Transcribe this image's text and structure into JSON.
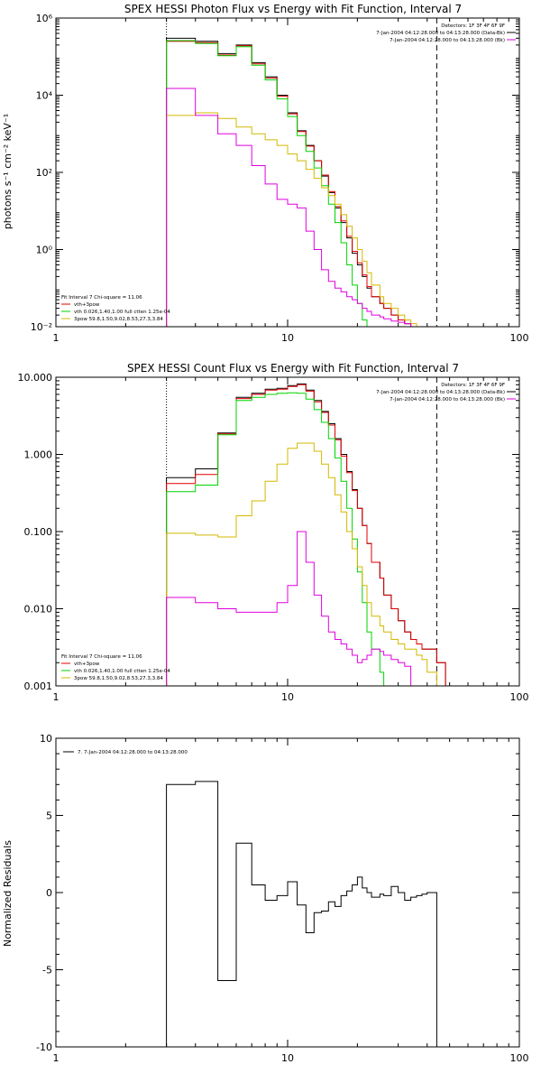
{
  "colors": {
    "black": "#000000",
    "red": "#e00000",
    "green": "#00d400",
    "yellow": "#d4b800",
    "magenta": "#e000e0"
  },
  "chart_data": [
    {
      "type": "line",
      "step": true,
      "title": "SPEX HESSI Photon Flux vs Energy with Fit Function, Interval 7",
      "xlabel": "",
      "ylabel": "photons s⁻¹ cm⁻² keV⁻¹",
      "xscale": "log",
      "yscale": "log",
      "xlim": [
        1,
        100
      ],
      "ylim": [
        0.01,
        1000000
      ],
      "xticks": [
        1,
        10,
        100
      ],
      "xtick_labels": [
        "1",
        "10",
        "100"
      ],
      "yticks": [
        0.01,
        1,
        100,
        10000,
        1000000
      ],
      "ytick_labels": [
        "10⁻²",
        "10⁰",
        "10²",
        "10⁴",
        "10⁶"
      ],
      "vlines": [
        {
          "x": 3,
          "style": "dotted"
        },
        {
          "x": 44,
          "style": "dashed"
        }
      ],
      "bin_edges": [
        3,
        4,
        5,
        6,
        7,
        8,
        9,
        10,
        11,
        12,
        13,
        14,
        15,
        16,
        17,
        18,
        19,
        20,
        21,
        22,
        23,
        25,
        26,
        28,
        30,
        32,
        34,
        36,
        38,
        40,
        44,
        48,
        52
      ],
      "series": [
        {
          "color": "black",
          "values": [
            300000,
            250000,
            120000,
            200000,
            70000,
            30000,
            10000,
            3500,
            1200,
            500,
            200,
            80,
            30,
            12,
            5,
            2,
            0.8,
            0.4,
            0.2,
            0.1,
            0.06,
            0.04,
            0.03,
            0.02,
            0.015,
            0.012,
            0.01,
            null,
            null,
            null,
            null,
            null
          ]
        },
        {
          "color": "red",
          "values": [
            250000,
            230000,
            110000,
            190000,
            65000,
            28000,
            9500,
            3300,
            1150,
            480,
            200,
            85,
            32,
            13,
            5.5,
            2.2,
            0.9,
            0.45,
            0.22,
            0.11,
            0.06,
            0.04,
            0.03,
            0.02,
            0.015,
            0.012,
            0.01,
            null,
            null,
            null,
            null,
            null
          ]
        },
        {
          "color": "green",
          "values": [
            260000,
            220000,
            105000,
            180000,
            60000,
            25000,
            8000,
            2800,
            900,
            350,
            130,
            45,
            15,
            5,
            1.5,
            0.4,
            0.12,
            0.04,
            0.015,
            null,
            null,
            null,
            null,
            null,
            null,
            null,
            null,
            null,
            null,
            null,
            null,
            null
          ]
        },
        {
          "color": "yellow",
          "values": [
            3000,
            3500,
            2500,
            1500,
            1000,
            700,
            500,
            300,
            200,
            120,
            70,
            40,
            25,
            15,
            8,
            4,
            2,
            1,
            0.5,
            0.25,
            0.12,
            0.06,
            0.04,
            0.03,
            0.02,
            0.015,
            0.012,
            0.01,
            null,
            null,
            null,
            null
          ]
        },
        {
          "color": "magenta",
          "values": [
            15000,
            3000,
            1000,
            500,
            150,
            50,
            20,
            15,
            12,
            3,
            1,
            0.3,
            0.15,
            0.1,
            0.08,
            0.06,
            0.05,
            0.04,
            0.03,
            0.025,
            0.02,
            0.018,
            0.016,
            0.014,
            0.013,
            0.012,
            null,
            null,
            null,
            null,
            null,
            null
          ]
        }
      ],
      "legend": {
        "position": "top-right",
        "lines": [
          "Detectors: 1F 3F 4F 6F 9F",
          "7-Jan-2004 04:12:28.000 to 04:13:28.000 (Data-Bk)",
          "7-Jan-2004 04:12:28.000 to 04:13:28.000 (Bk)"
        ],
        "colors": [
          "",
          "black",
          "magenta"
        ]
      },
      "fit_legend": {
        "position": "bottom-left",
        "lines": [
          "Fit Interval 7   Chi-square = 11.06",
          "vth+3pow",
          "vth 0.026,1.40,1.00  full ctten 1.25e-04",
          "3pow 59.8,1.50,9.02,8.53,27.3,3.84"
        ],
        "colors": [
          "",
          "red",
          "green",
          "yellow"
        ]
      }
    },
    {
      "type": "line",
      "step": true,
      "title": "SPEX HESSI Count Flux vs Energy with Fit Function, Interval 7",
      "xlabel": "",
      "ylabel": "",
      "xscale": "log",
      "yscale": "log",
      "xlim": [
        1,
        100
      ],
      "ylim": [
        0.001,
        10
      ],
      "xticks": [
        1,
        10,
        100
      ],
      "xtick_labels": [
        "1",
        "10",
        "100"
      ],
      "yticks": [
        0.001,
        0.01,
        0.1,
        1,
        10
      ],
      "ytick_labels": [
        "0.001",
        "0.010",
        "0.100",
        "1.000",
        "10.000"
      ],
      "vlines": [
        {
          "x": 3,
          "style": "dotted"
        },
        {
          "x": 44,
          "style": "dashed"
        }
      ],
      "bin_edges": [
        3,
        4,
        5,
        6,
        7,
        8,
        9,
        10,
        11,
        12,
        13,
        14,
        15,
        16,
        17,
        18,
        19,
        20,
        21,
        22,
        23,
        25,
        26,
        28,
        30,
        32,
        34,
        36,
        38,
        40,
        44,
        48,
        52
      ],
      "series": [
        {
          "color": "black",
          "values": [
            0.5,
            0.65,
            1.9,
            5.5,
            6.2,
            7.0,
            7.2,
            7.8,
            8.2,
            6.8,
            5.0,
            3.6,
            2.5,
            1.6,
            1.0,
            0.6,
            0.35,
            0.2,
            0.12,
            0.07,
            0.04,
            0.025,
            0.015,
            0.01,
            0.007,
            0.005,
            0.004,
            0.0035,
            0.003,
            0.003,
            0.002,
            0.001
          ]
        },
        {
          "color": "red",
          "values": [
            0.42,
            0.55,
            1.85,
            5.3,
            6.0,
            6.8,
            7.0,
            7.6,
            8.0,
            6.6,
            4.8,
            3.5,
            2.4,
            1.55,
            0.95,
            0.58,
            0.34,
            0.2,
            0.12,
            0.07,
            0.04,
            0.025,
            0.015,
            0.01,
            0.007,
            0.005,
            0.004,
            0.0035,
            0.003,
            0.003,
            0.002,
            0.001
          ]
        },
        {
          "color": "green",
          "values": [
            0.33,
            0.4,
            1.8,
            5.0,
            5.5,
            6.0,
            6.2,
            6.3,
            6.2,
            5.2,
            3.8,
            2.6,
            1.6,
            0.9,
            0.45,
            0.2,
            0.08,
            0.03,
            0.012,
            0.005,
            0.003,
            0.0015,
            0.001,
            null,
            null,
            null,
            null,
            null,
            null,
            null,
            null,
            null
          ]
        },
        {
          "color": "yellow",
          "values": [
            0.095,
            0.09,
            0.085,
            0.16,
            0.25,
            0.45,
            0.75,
            1.2,
            1.4,
            1.4,
            1.1,
            0.75,
            0.5,
            0.3,
            0.18,
            0.1,
            0.06,
            0.035,
            0.02,
            0.012,
            0.008,
            0.006,
            0.005,
            0.004,
            0.0035,
            0.003,
            0.003,
            0.0025,
            0.0022,
            0.0015,
            0.001,
            0.001
          ]
        },
        {
          "color": "magenta",
          "values": [
            0.014,
            0.012,
            0.01,
            0.009,
            0.009,
            0.009,
            0.012,
            0.02,
            0.1,
            0.04,
            0.015,
            0.008,
            0.005,
            0.004,
            0.0035,
            0.003,
            0.0025,
            0.002,
            0.0022,
            0.0025,
            0.003,
            0.0028,
            0.0025,
            0.0022,
            0.002,
            0.0018,
            null,
            null,
            null,
            null,
            null,
            null
          ]
        }
      ],
      "legend": {
        "position": "top-right",
        "lines": [
          "Detectors: 1F 3F 4F 6F 9F",
          "7-Jan-2004 04:12:28.000 to 04:13:28.000 (Data-Bk)",
          "7-Jan-2004 04:12:28.000 to 04:13:28.000 (Bk)"
        ],
        "colors": [
          "",
          "black",
          "magenta"
        ]
      },
      "fit_legend": {
        "position": "bottom-left",
        "lines": [
          "Fit Interval 7   Chi-square = 11.06",
          "vth+3pow",
          "vth 0.026,1.40,1.00  full ctten 1.25e-04",
          "3pow 59.8,1.50,9.02,8.53,27.3,3.84"
        ],
        "colors": [
          "",
          "red",
          "green",
          "yellow"
        ]
      }
    },
    {
      "type": "line",
      "step": true,
      "title": "",
      "xlabel": "",
      "ylabel": "Normalized Residuals",
      "xscale": "log",
      "yscale": "linear",
      "xlim": [
        1,
        100
      ],
      "ylim": [
        -10,
        10
      ],
      "xticks": [
        1,
        10,
        100
      ],
      "xtick_labels": [
        "1",
        "10",
        "100"
      ],
      "yticks": [
        -10,
        -5,
        0,
        5,
        10
      ],
      "ytick_labels": [
        "-10",
        "-5",
        "0",
        "5",
        "10"
      ],
      "bin_edges": [
        3,
        4,
        5,
        6,
        7,
        8,
        9,
        10,
        11,
        12,
        13,
        14,
        15,
        16,
        17,
        18,
        19,
        20,
        21,
        22,
        23,
        25,
        26,
        28,
        30,
        32,
        34,
        36,
        38,
        40,
        44
      ],
      "series": [
        {
          "color": "black",
          "values": [
            7.0,
            7.2,
            -5.7,
            3.2,
            0.5,
            -0.5,
            -0.2,
            0.7,
            -0.8,
            -2.6,
            -1.3,
            -1.2,
            -0.6,
            -0.9,
            -0.2,
            0.1,
            0.5,
            1.0,
            0.3,
            0.0,
            -0.3,
            -0.1,
            -0.2,
            0.4,
            0.0,
            -0.5,
            -0.3,
            -0.2,
            -0.1,
            0.0
          ]
        }
      ],
      "legend": {
        "position": "top-left",
        "lines": [
          "7.  7-Jan-2004 04:12:28.000 to 04:13:28.000"
        ],
        "colors": [
          "black"
        ]
      }
    }
  ]
}
